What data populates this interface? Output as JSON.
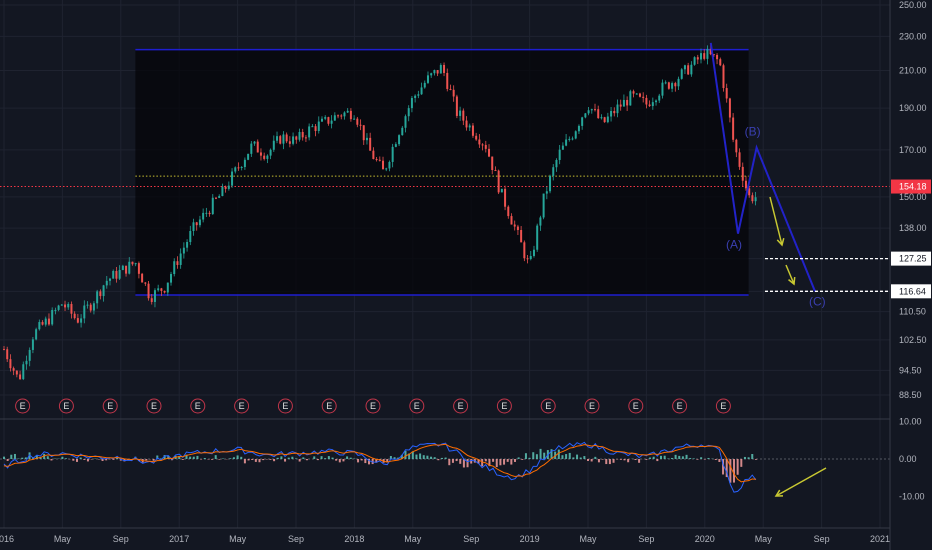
{
  "colors": {
    "background": "#131722",
    "up": "#26a69a",
    "down": "#ef5350",
    "box_border": "#1e1ed0",
    "wave": "#2222c8",
    "wave_label": "#3a3fb0",
    "avg_line": "#c8c032",
    "last_price": "#f23645",
    "arrow": "#c8c832",
    "macd": "#2962ff",
    "signal": "#ff6d00",
    "earnings": "#c0364a"
  },
  "earnings_marker": "E",
  "chart_data": [
    {
      "type": "candlestick",
      "y_scale": "log",
      "ylim": [
        85,
        252
      ],
      "y_ticks": [
        "250.00",
        "230.00",
        "210.00",
        "190.00",
        "170.00",
        "150.00",
        "138.00",
        "127.25",
        "116.64",
        "110.50",
        "102.50",
        "94.50",
        "88.50"
      ],
      "x_tick_labels": [
        "2016",
        "May",
        "Sep",
        "2017",
        "May",
        "Sep",
        "2018",
        "May",
        "Sep",
        "2019",
        "May",
        "Sep",
        "2020",
        "May",
        "Sep",
        "2021"
      ],
      "last_price": {
        "label": "154.18",
        "value": 154.18
      },
      "target_levels": [
        {
          "label": "127.25",
          "value": 127.25
        },
        {
          "label": "116.64",
          "value": 116.64
        }
      ],
      "range_box": {
        "start": "2016-10",
        "end": "2020-04",
        "high": 222,
        "low": 115.5
      },
      "avg_line_value": 158.5,
      "price_path": [
        [
          "2016-01",
          100
        ],
        [
          "2016-02",
          92
        ],
        [
          "2016-03",
          104
        ],
        [
          "2016-04",
          108
        ],
        [
          "2016-05",
          113
        ],
        [
          "2016-06",
          108
        ],
        [
          "2016-07",
          113
        ],
        [
          "2016-08",
          120
        ],
        [
          "2016-09",
          123
        ],
        [
          "2016-10",
          126
        ],
        [
          "2016-11",
          115
        ],
        [
          "2016-12",
          118
        ],
        [
          "2017-01",
          128
        ],
        [
          "2017-02",
          138
        ],
        [
          "2017-03",
          145
        ],
        [
          "2017-04",
          152
        ],
        [
          "2017-05",
          162
        ],
        [
          "2017-06",
          172
        ],
        [
          "2017-07",
          168
        ],
        [
          "2017-08",
          176
        ],
        [
          "2017-09",
          174
        ],
        [
          "2017-10",
          180
        ],
        [
          "2017-11",
          183
        ],
        [
          "2017-12",
          187
        ],
        [
          "2018-01",
          188
        ],
        [
          "2018-02",
          170
        ],
        [
          "2018-03",
          160
        ],
        [
          "2018-04",
          178
        ],
        [
          "2018-05",
          195
        ],
        [
          "2018-06",
          205
        ],
        [
          "2018-07",
          212
        ],
        [
          "2018-08",
          188
        ],
        [
          "2018-09",
          180
        ],
        [
          "2018-10",
          172
        ],
        [
          "2018-11",
          152
        ],
        [
          "2018-12",
          138
        ],
        [
          "2019-01",
          124
        ],
        [
          "2019-02",
          150
        ],
        [
          "2019-03",
          168
        ],
        [
          "2019-04",
          178
        ],
        [
          "2019-05",
          192
        ],
        [
          "2019-06",
          182
        ],
        [
          "2019-07",
          190
        ],
        [
          "2019-08",
          196
        ],
        [
          "2019-09",
          192
        ],
        [
          "2019-10",
          200
        ],
        [
          "2019-11",
          205
        ],
        [
          "2019-12",
          212
        ],
        [
          "2020-01",
          220
        ],
        [
          "2020-02",
          215
        ],
        [
          "2020-03",
          172
        ],
        [
          "2020-04",
          150
        ]
      ],
      "elliott_wave": [
        {
          "label": "(A)",
          "date": "2020-03",
          "value": 136
        },
        {
          "label": "(B)",
          "date": "2020-04",
          "value": 171
        },
        {
          "label": "(C)",
          "date": "2020-08",
          "value": 116.64
        }
      ],
      "earnings_dates": [
        "2016-02",
        "2016-05",
        "2016-08",
        "2016-11",
        "2017-02",
        "2017-05",
        "2017-08",
        "2017-11",
        "2018-02",
        "2018-05",
        "2018-08",
        "2018-11",
        "2019-02",
        "2019-05",
        "2019-08",
        "2019-11",
        "2020-02"
      ]
    },
    {
      "type": "line",
      "name": "",
      "y_ticks": [
        "10.00",
        "0.00",
        "-10.00"
      ],
      "ylim": [
        -14,
        12
      ],
      "macd_path": [
        [
          "2016-01",
          -2
        ],
        [
          "2016-03",
          1
        ],
        [
          "2016-05",
          1.5
        ],
        [
          "2016-07",
          0.5
        ],
        [
          "2016-09",
          0.5
        ],
        [
          "2016-11",
          -1
        ],
        [
          "2017-01",
          1
        ],
        [
          "2017-03",
          2
        ],
        [
          "2017-05",
          2.5
        ],
        [
          "2017-07",
          1
        ],
        [
          "2017-09",
          1.5
        ],
        [
          "2017-11",
          2
        ],
        [
          "2018-01",
          1.5
        ],
        [
          "2018-03",
          -1.5
        ],
        [
          "2018-05",
          3
        ],
        [
          "2018-07",
          4
        ],
        [
          "2018-09",
          -0.5
        ],
        [
          "2018-11",
          -4
        ],
        [
          "2018-12",
          -5
        ],
        [
          "2019-01",
          -3
        ],
        [
          "2019-03",
          3
        ],
        [
          "2019-05",
          4
        ],
        [
          "2019-07",
          1.5
        ],
        [
          "2019-09",
          0.5
        ],
        [
          "2019-11",
          3
        ],
        [
          "2020-01",
          4
        ],
        [
          "2020-02",
          2
        ],
        [
          "2020-03",
          -9
        ],
        [
          "2020-04",
          -5
        ]
      ]
    }
  ]
}
